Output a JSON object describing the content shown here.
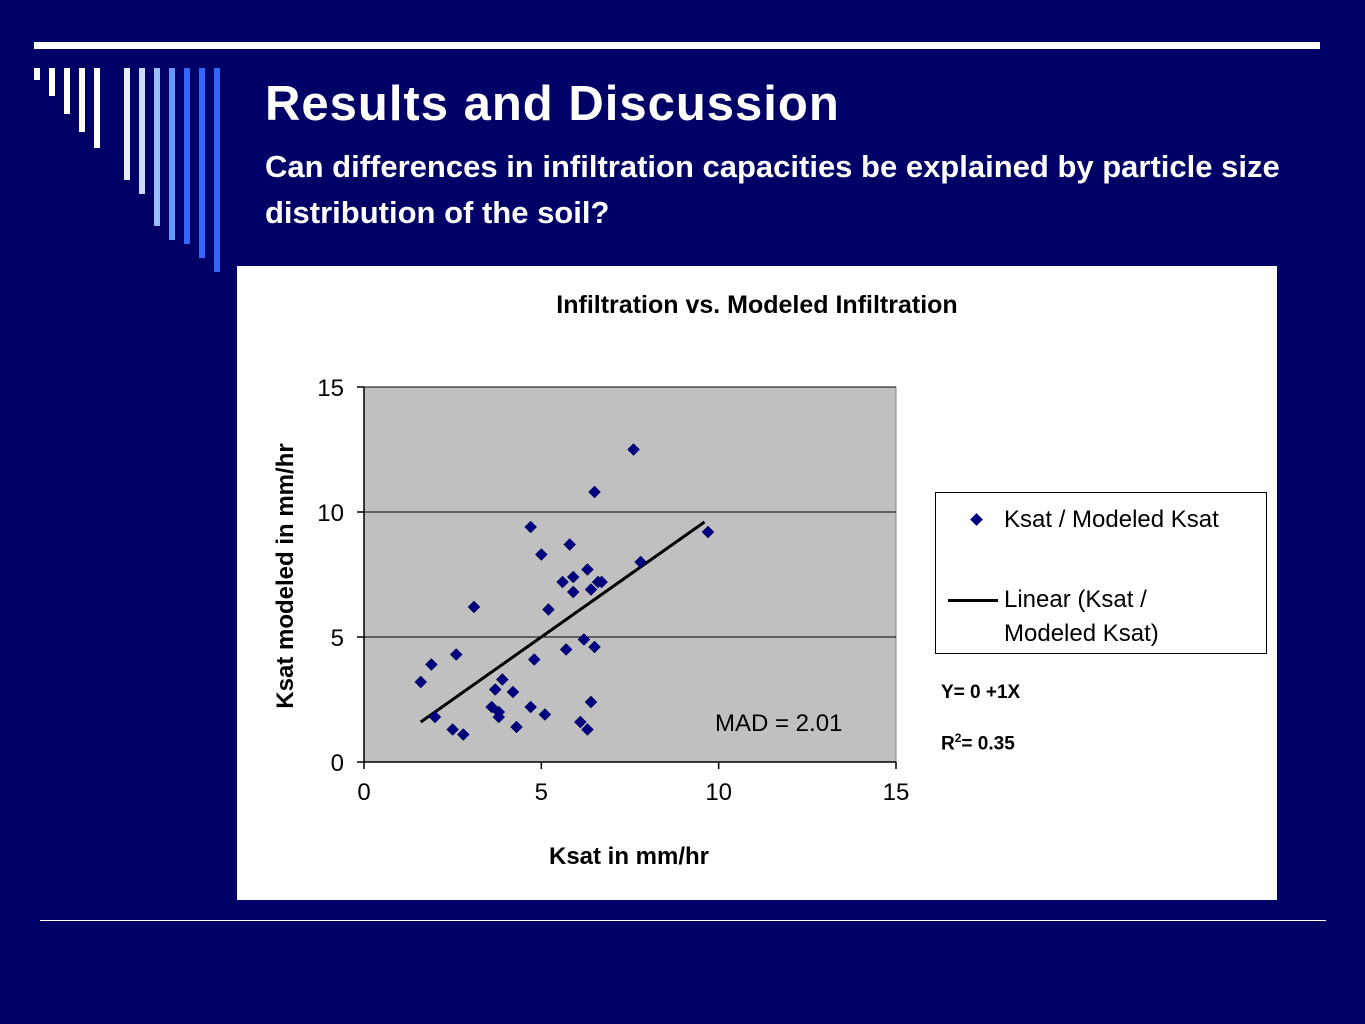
{
  "slide": {
    "title": "Results and Discussion",
    "subtitle": "Can differences in infiltration capacities be explained by particle size distribution of the soil?"
  },
  "colors": {
    "background": "#000066",
    "decor_bars": [
      "#ffffff",
      "#ffffff",
      "#ffffff",
      "#ffffff",
      "#ffffff",
      "#e8ecff",
      "#ccdaff",
      "#99bbff",
      "#6699ff",
      "#3366ff"
    ],
    "plot_area": "#c0c0c0",
    "marker": "#000080",
    "trendline": "#000000"
  },
  "legend": {
    "series_label": "Ksat / Modeled Ksat",
    "trend_label_line1": "Linear (Ksat /",
    "trend_label_line2": "Modeled Ksat)"
  },
  "annotations": {
    "equation": "Y= 0 +1X",
    "r2_prefix": "R",
    "r2_sup": "2",
    "r2_value": "= 0.35"
  },
  "chart_data": {
    "type": "scatter",
    "title": "Infiltration vs. Modeled Infiltration",
    "xlabel": "Ksat in mm/hr",
    "ylabel": "Ksat modeled in mm/hr",
    "xlim": [
      0,
      15
    ],
    "ylim": [
      0,
      15
    ],
    "xticks": [
      0,
      5,
      10,
      15
    ],
    "yticks": [
      0,
      5,
      10,
      15
    ],
    "grid": "horizontal",
    "legend_position": "right",
    "annotation": "MAD = 2.01",
    "series": [
      {
        "name": "Ksat / Modeled Ksat",
        "marker": "diamond",
        "x": [
          1.6,
          1.9,
          2.0,
          2.5,
          2.6,
          2.8,
          3.1,
          3.6,
          3.7,
          3.8,
          3.8,
          3.9,
          4.2,
          4.3,
          4.7,
          4.7,
          4.8,
          5.0,
          5.1,
          5.2,
          5.6,
          5.7,
          5.8,
          5.9,
          5.9,
          6.1,
          6.2,
          6.3,
          6.3,
          6.4,
          6.4,
          6.5,
          6.5,
          6.6,
          6.7,
          7.6,
          7.8,
          9.7
        ],
        "y": [
          3.2,
          3.9,
          1.8,
          1.3,
          4.3,
          1.1,
          6.2,
          2.2,
          2.9,
          2.0,
          1.8,
          3.3,
          2.8,
          1.4,
          9.4,
          2.2,
          4.1,
          8.3,
          1.9,
          6.1,
          7.2,
          4.5,
          8.7,
          7.4,
          6.8,
          1.6,
          4.9,
          1.3,
          7.7,
          2.4,
          6.9,
          10.8,
          4.6,
          7.2,
          7.2,
          12.5,
          8.0,
          9.2
        ]
      },
      {
        "name": "Linear (Ksat / Modeled Ksat)",
        "type": "line",
        "x": [
          1.6,
          9.6
        ],
        "y": [
          1.6,
          9.6
        ]
      }
    ]
  }
}
